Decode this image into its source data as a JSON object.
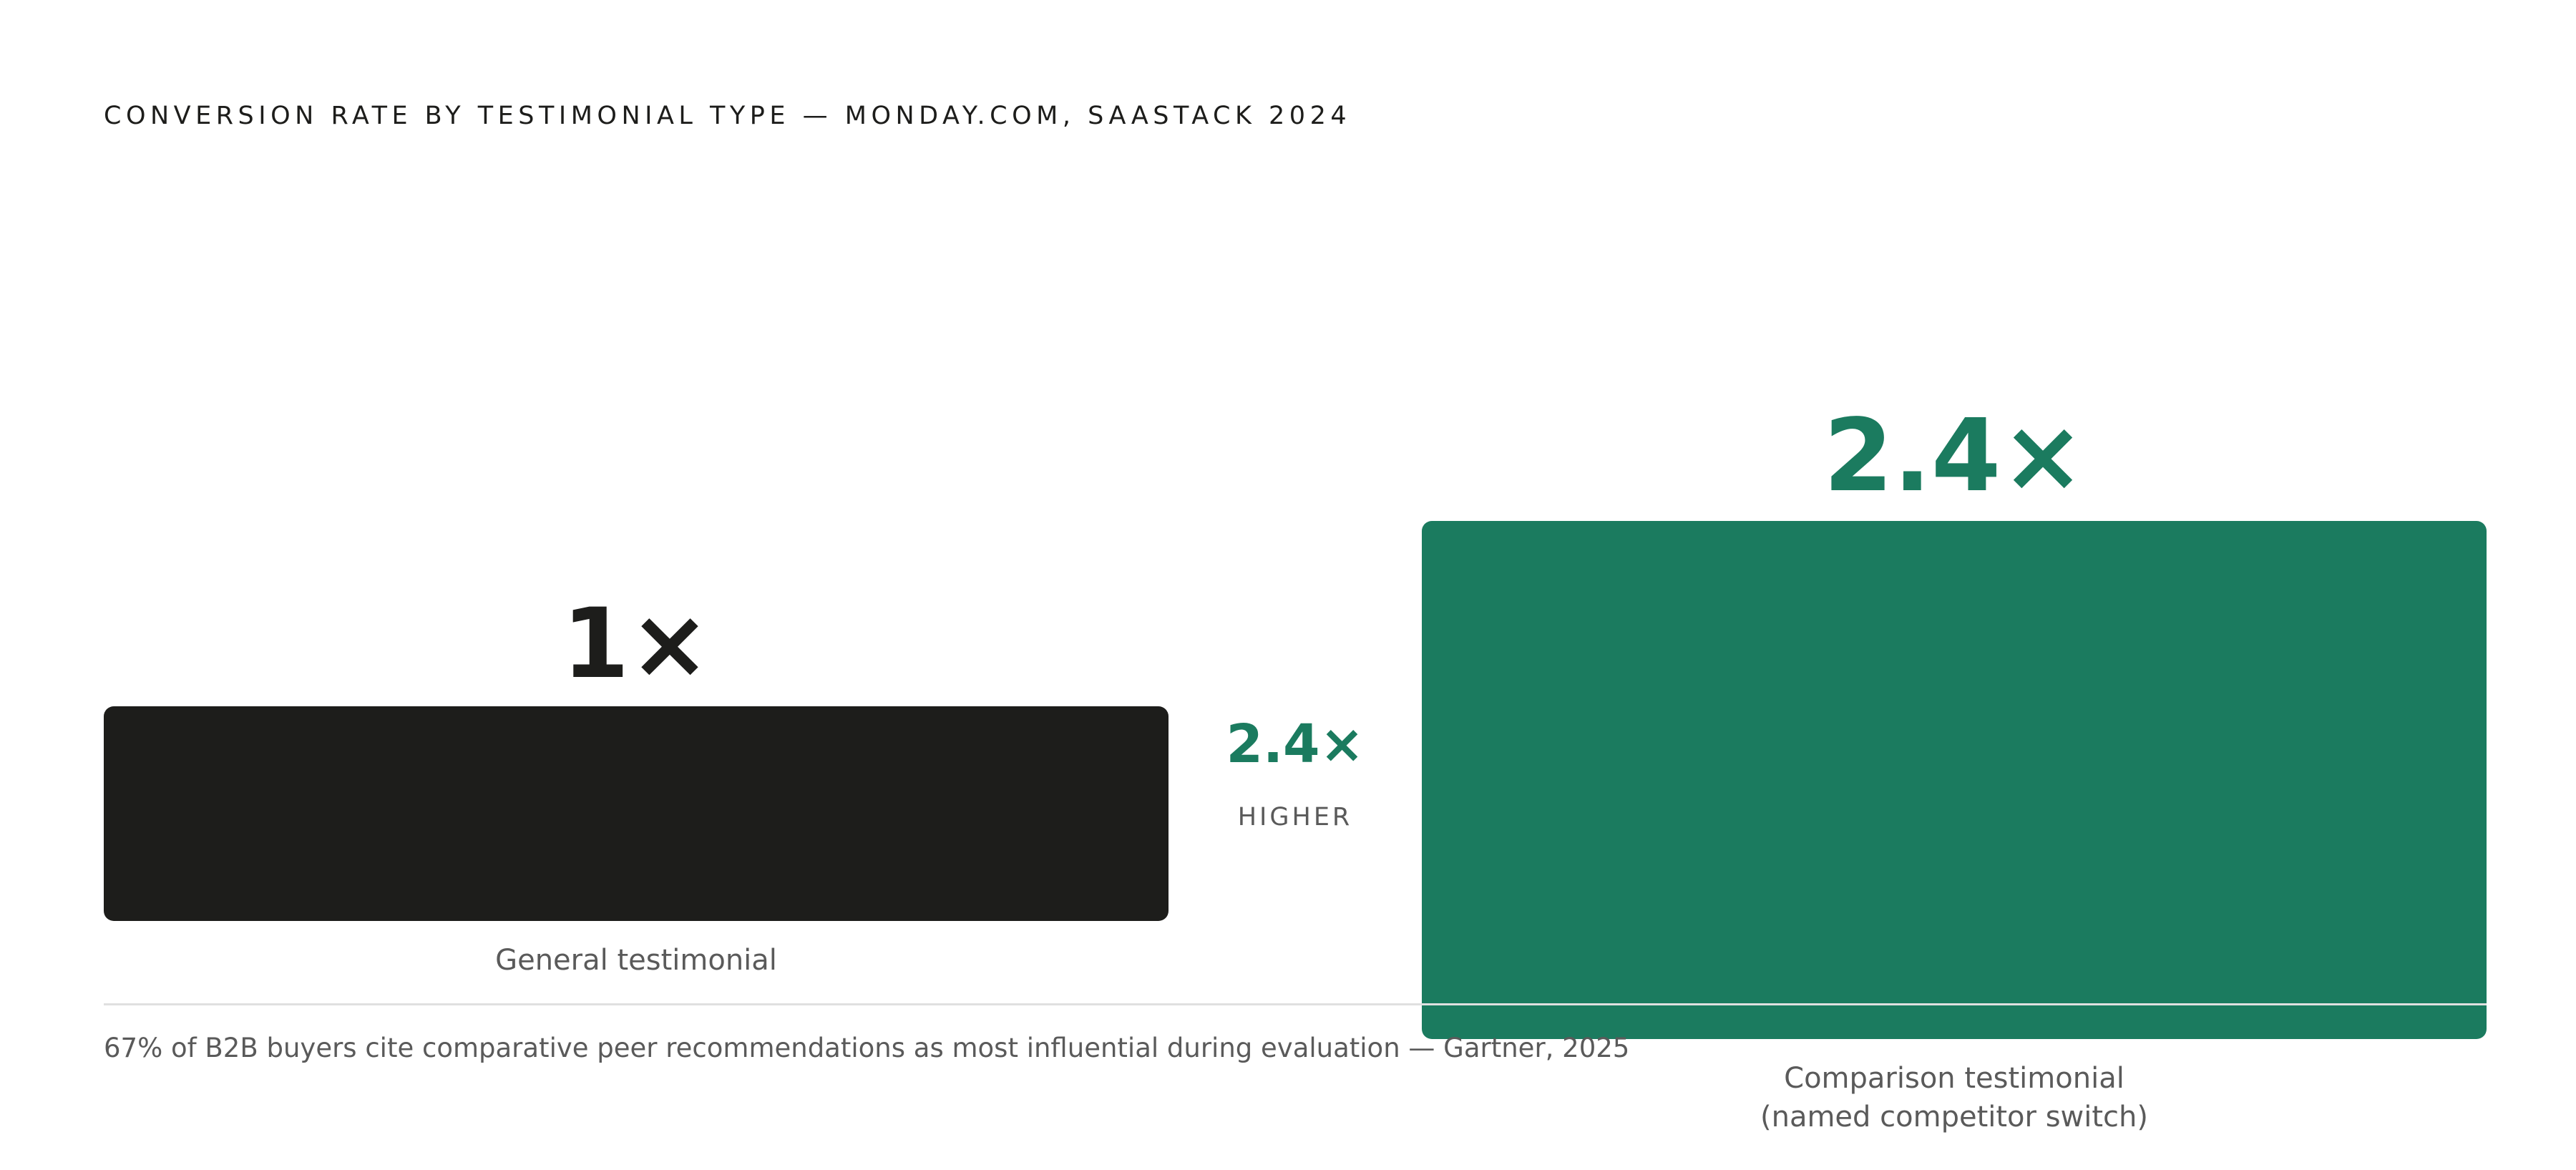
{
  "chart_data": {
    "type": "bar",
    "title": "CONVERSION RATE BY TESTIMONIAL TYPE — MONDAY.COM, SAASTACK 2024",
    "categories": [
      "General testimonial",
      "Comparison testimonial\n(named competitor switch)"
    ],
    "values": [
      1,
      2.4
    ],
    "value_labels": [
      "1×",
      "2.4×"
    ],
    "colors": [
      "#1d1d1b",
      "#1b7b5f"
    ],
    "ylim": [
      0,
      2.4
    ],
    "grid": false,
    "annotation": {
      "value": "2.4×",
      "label": "HIGHER"
    },
    "footnote": "67% of B2B buyers cite comparative peer recommendations as most influential during evaluation — Gartner, 2025"
  }
}
